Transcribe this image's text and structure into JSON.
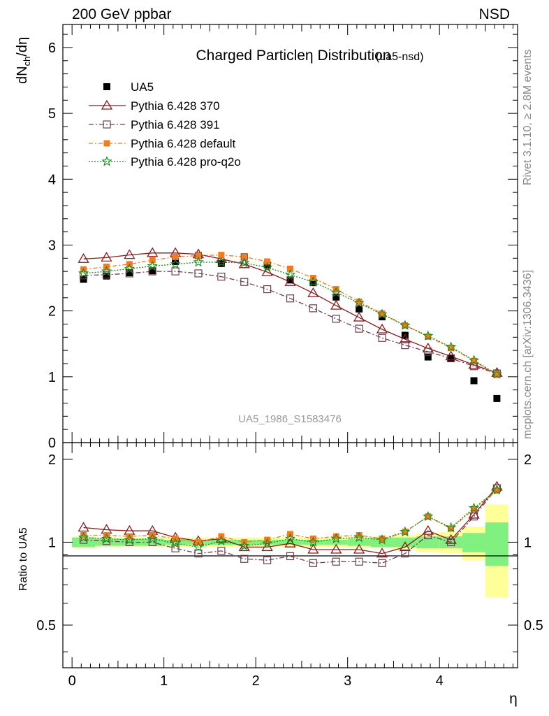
{
  "header": {
    "left": "200 GeV ppbar",
    "right": "NSD"
  },
  "side_labels": {
    "rivet": "Rivet 3.1.10, ≥ 2.8M events",
    "mcplots": "mcplots.cern.ch [arXiv:1306.3436]"
  },
  "colors": {
    "data": "#000000",
    "pythia_370": "#8b1a1a",
    "pythia_391": "#6b3f4f",
    "pythia_default": "#f47c20",
    "pythia_proq2o": "#1a8a1a",
    "band_inner": "#80f080",
    "band_outer": "#ffff99"
  },
  "chart_data": [
    {
      "type": "scatter",
      "panel": "main",
      "title_main": "Charged Particle",
      "title_symbol": "η",
      "title_rest": " Distribution",
      "title_tag": "(ua5-nsd)",
      "watermark": "UA5_1986_S1583476",
      "ylabel_base": "dN",
      "ylabel_sub": "ch",
      "ylabel_tail": "/dη",
      "xlim": [
        -0.1,
        4.85
      ],
      "ylim": [
        0,
        6.35
      ],
      "yticks": [
        "0",
        "1",
        "2",
        "3",
        "4",
        "5",
        "6"
      ],
      "x": [
        0.125,
        0.375,
        0.625,
        0.875,
        1.125,
        1.375,
        1.625,
        1.875,
        2.125,
        2.375,
        2.625,
        2.875,
        3.125,
        3.375,
        3.625,
        3.875,
        4.125,
        4.375,
        4.625
      ],
      "series": [
        {
          "name": "UA5",
          "key": "data",
          "values": [
            2.48,
            2.53,
            2.58,
            2.61,
            2.75,
            2.84,
            2.72,
            2.82,
            2.7,
            2.47,
            2.43,
            2.21,
            2.03,
            1.91,
            1.63,
            1.3,
            1.28,
            0.94,
            0.67
          ]
        },
        {
          "name": "Pythia 6.428 370",
          "key": "p370",
          "values": [
            2.79,
            2.81,
            2.85,
            2.88,
            2.88,
            2.86,
            2.79,
            2.71,
            2.59,
            2.44,
            2.27,
            2.08,
            1.9,
            1.72,
            1.57,
            1.43,
            1.31,
            1.18,
            1.06
          ]
        },
        {
          "name": "Pythia 6.428 391",
          "key": "p391",
          "values": [
            2.54,
            2.55,
            2.57,
            2.6,
            2.6,
            2.57,
            2.52,
            2.44,
            2.33,
            2.19,
            2.04,
            1.88,
            1.73,
            1.59,
            1.48,
            1.38,
            1.28,
            1.16,
            1.05
          ]
        },
        {
          "name": "Pythia 6.428 default",
          "key": "pdef",
          "values": [
            2.63,
            2.67,
            2.71,
            2.77,
            2.82,
            2.84,
            2.85,
            2.82,
            2.75,
            2.64,
            2.5,
            2.33,
            2.14,
            1.96,
            1.78,
            1.61,
            1.44,
            1.24,
            1.03
          ]
        },
        {
          "name": "Pythia 6.428 pro-q2o",
          "key": "pq2o",
          "values": [
            2.57,
            2.6,
            2.64,
            2.68,
            2.71,
            2.74,
            2.74,
            2.73,
            2.66,
            2.55,
            2.44,
            2.28,
            2.12,
            1.95,
            1.78,
            1.62,
            1.45,
            1.25,
            1.04
          ]
        }
      ],
      "legend": [
        "UA5",
        "Pythia 6.428 370",
        "Pythia 6.428 391",
        "Pythia 6.428 default",
        "Pythia 6.428 pro-q2o"
      ],
      "legend_position": "top-left"
    },
    {
      "type": "line",
      "panel": "ratio",
      "ylabel": "Ratio to UA5",
      "xlabel": "η",
      "xlim": [
        -0.1,
        4.85
      ],
      "ylim": [
        0.35,
        2.3
      ],
      "yticks": [
        "0.5",
        "1",
        "2"
      ],
      "xticks": [
        "0",
        "1",
        "2",
        "3",
        "4"
      ],
      "x": [
        0.125,
        0.375,
        0.625,
        0.875,
        1.125,
        1.375,
        1.625,
        1.875,
        2.125,
        2.375,
        2.625,
        2.875,
        3.125,
        3.375,
        3.625,
        3.875,
        4.125,
        4.375,
        4.625
      ],
      "band_inner_halfwidth": [
        0.04,
        0.03,
        0.03,
        0.03,
        0.02,
        0.02,
        0.02,
        0.02,
        0.02,
        0.02,
        0.02,
        0.02,
        0.03,
        0.04,
        0.04,
        0.05,
        0.05,
        0.08,
        0.18
      ],
      "band_outer_halfwidth": [
        0.05,
        0.04,
        0.04,
        0.04,
        0.04,
        0.04,
        0.04,
        0.04,
        0.04,
        0.04,
        0.04,
        0.04,
        0.05,
        0.05,
        0.06,
        0.08,
        0.09,
        0.14,
        0.37
      ],
      "series": [
        {
          "name": "Pythia 6.428 370",
          "key": "p370",
          "values": [
            1.13,
            1.11,
            1.1,
            1.1,
            1.04,
            1.01,
            1.03,
            0.96,
            0.96,
            0.99,
            0.94,
            0.94,
            0.94,
            0.91,
            0.96,
            1.1,
            1.02,
            1.26,
            1.59
          ]
        },
        {
          "name": "Pythia 6.428 391",
          "key": "p391",
          "values": [
            1.02,
            1.01,
            1.0,
            1.0,
            0.95,
            0.91,
            0.93,
            0.87,
            0.86,
            0.89,
            0.84,
            0.85,
            0.85,
            0.84,
            0.91,
            1.06,
            1.0,
            1.24,
            1.57
          ]
        },
        {
          "name": "Pythia 6.428 default",
          "key": "pdef",
          "values": [
            1.06,
            1.06,
            1.05,
            1.06,
            1.03,
            1.0,
            1.05,
            1.0,
            1.02,
            1.07,
            1.03,
            1.05,
            1.06,
            1.03,
            1.09,
            1.24,
            1.12,
            1.32,
            1.54
          ]
        },
        {
          "name": "Pythia 6.428 pro-q2o",
          "key": "pq2o",
          "values": [
            1.04,
            1.03,
            1.02,
            1.03,
            0.99,
            0.96,
            1.01,
            0.97,
            0.99,
            1.03,
            1.0,
            1.03,
            1.04,
            1.02,
            1.09,
            1.24,
            1.13,
            1.33,
            1.55
          ]
        }
      ]
    }
  ]
}
